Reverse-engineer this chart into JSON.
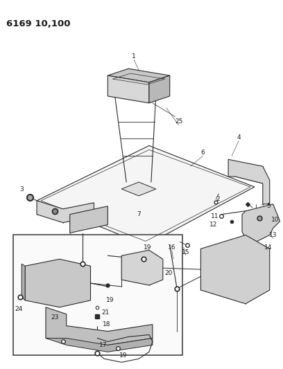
{
  "title": "6169 10,100",
  "bg": "#ffffff",
  "lc": "#2a2a2a",
  "tc": "#1a1a1a",
  "fig_w": 4.08,
  "fig_h": 5.33,
  "dpi": 100
}
